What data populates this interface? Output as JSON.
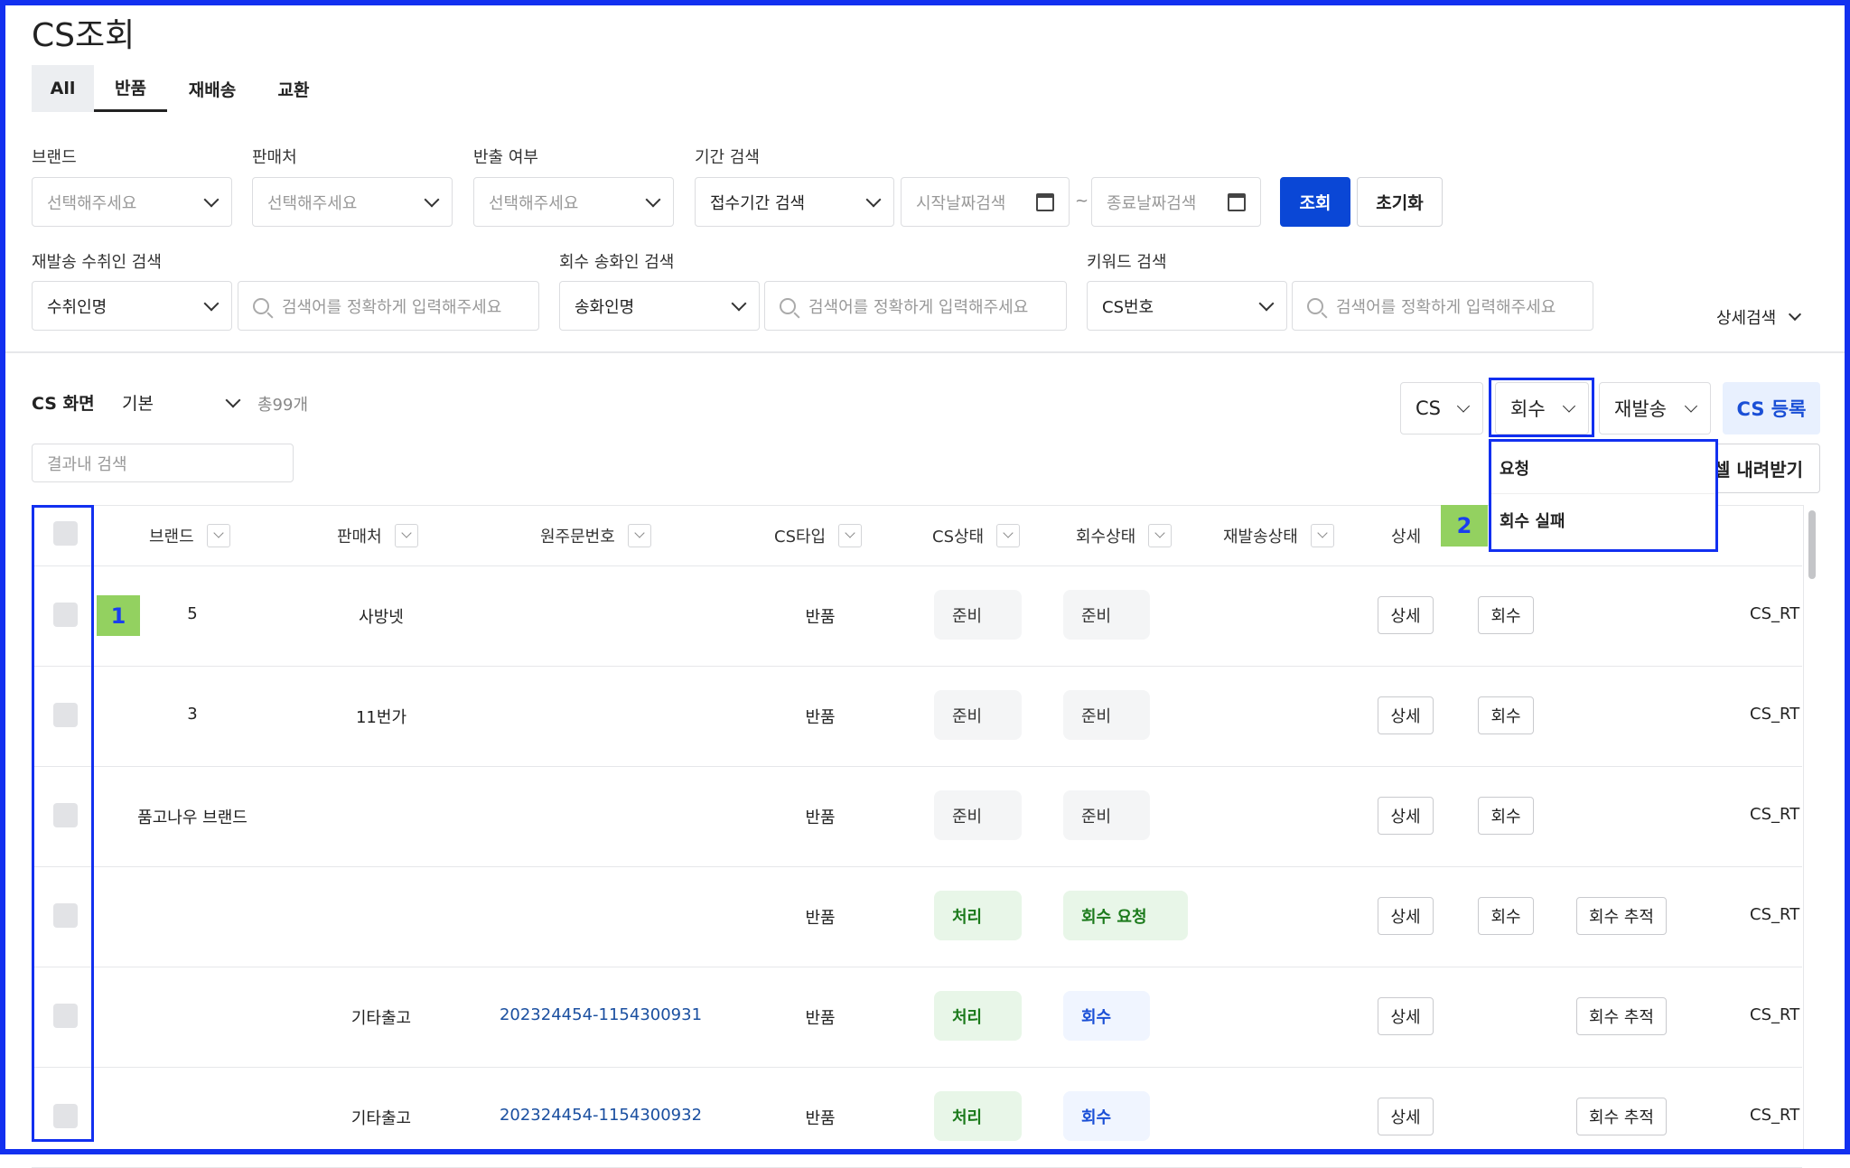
{
  "page_title": "CS조회",
  "tabs": [
    {
      "label": "All"
    },
    {
      "label": "반품"
    },
    {
      "label": "재배송"
    },
    {
      "label": "교환"
    }
  ],
  "filters": {
    "brand": {
      "label": "브랜드",
      "placeholder": "선택해주세요"
    },
    "seller": {
      "label": "판매처",
      "placeholder": "선택해주세요"
    },
    "release": {
      "label": "반출 여부",
      "placeholder": "선택해주세요"
    },
    "period": {
      "label": "기간 검색",
      "value": "접수기간 검색",
      "start_placeholder": "시작날짜검색",
      "end_placeholder": "종료날짜검색",
      "separator": "~"
    },
    "search_button": "조회",
    "reset_button": "초기화",
    "resend": {
      "label": "재발송 수취인 검색",
      "value": "수취인명",
      "placeholder": "검색어를 정확하게 입력해주세요"
    },
    "pickup": {
      "label": "회수 송화인 검색",
      "value": "송화인명",
      "placeholder": "검색어를 정확하게 입력해주세요"
    },
    "keyword": {
      "label": "키워드 검색",
      "value": "CS번호",
      "placeholder": "검색어를 정확하게 입력해주세요"
    },
    "detail_search": "상세검색"
  },
  "list": {
    "screen_label": "CS 화면",
    "screen_value": "기본",
    "total": "총99개",
    "result_search_placeholder": "결과내 검색",
    "cs_dropdown": "CS",
    "pickup_dropdown": "회수",
    "resend_dropdown": "재발송",
    "register_button": "CS 등록",
    "excel_button": "엑셀 내려받기",
    "pickup_menu": [
      {
        "label": "요청"
      },
      {
        "label": "회수 실패"
      }
    ]
  },
  "table": {
    "headers": {
      "brand": "브랜드",
      "seller": "판매처",
      "order_no": "원주문번호",
      "cs_type": "CS타입",
      "cs_status": "CS상태",
      "pickup_status": "회수상태",
      "resend_status": "재발송상태",
      "detail": "상세"
    },
    "rows": [
      {
        "brand": "5",
        "seller": "사방넷",
        "order_no": "",
        "cs_type": "반품",
        "cs_status": "준비",
        "cs_status_kind": "gray",
        "pickup_status": "준비",
        "pickup_kind": "gray",
        "detail": "상세",
        "pickup_btn": "회수",
        "track_btn": "",
        "cs_no": "CS_RT"
      },
      {
        "brand": "3",
        "seller": "11번가",
        "order_no": "",
        "cs_type": "반품",
        "cs_status": "준비",
        "cs_status_kind": "gray",
        "pickup_status": "준비",
        "pickup_kind": "gray",
        "detail": "상세",
        "pickup_btn": "회수",
        "track_btn": "",
        "cs_no": "CS_RT"
      },
      {
        "brand": "품고나우 브랜드",
        "seller": "",
        "order_no": "",
        "cs_type": "반품",
        "cs_status": "준비",
        "cs_status_kind": "gray",
        "pickup_status": "준비",
        "pickup_kind": "gray",
        "detail": "상세",
        "pickup_btn": "회수",
        "track_btn": "",
        "cs_no": "CS_RT"
      },
      {
        "brand": "",
        "seller": "",
        "order_no": "",
        "cs_type": "반품",
        "cs_status": "처리",
        "cs_status_kind": "green",
        "pickup_status": "회수 요청",
        "pickup_kind": "green",
        "detail": "상세",
        "pickup_btn": "회수",
        "track_btn": "회수 추적",
        "cs_no": "CS_RT"
      },
      {
        "brand": "",
        "seller": "기타출고",
        "order_no": "202324454-1154300931",
        "cs_type": "반품",
        "cs_status": "처리",
        "cs_status_kind": "green",
        "pickup_status": "회수",
        "pickup_kind": "blue",
        "detail": "상세",
        "pickup_btn": "",
        "track_btn": "회수 추적",
        "cs_no": "CS_RT"
      },
      {
        "brand": "",
        "seller": "기타출고",
        "order_no": "202324454-1154300932",
        "cs_type": "반품",
        "cs_status": "처리",
        "cs_status_kind": "green",
        "pickup_status": "회수",
        "pickup_kind": "blue",
        "detail": "상세",
        "pickup_btn": "",
        "track_btn": "회수 추적",
        "cs_no": "CS_RT"
      }
    ]
  },
  "annotations": {
    "one": "1",
    "two": "2"
  },
  "colors": {
    "primary": "#0a47d6",
    "annotation_border": "#1230f0",
    "annotation_label": "#93d160",
    "link": "#1a4fa0"
  }
}
